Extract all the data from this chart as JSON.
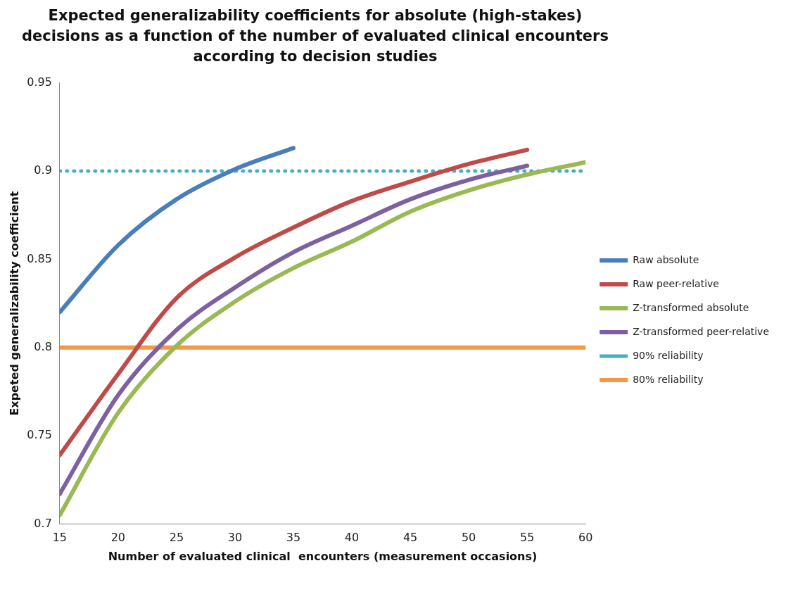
{
  "chart_data": {
    "type": "line",
    "title": "Expected generalizability coefficients for absolute (high-stakes) decisions as a function of the number of evaluated clinical encounters according to decision studies",
    "xlabel": "Number of evaluated clinical  encounters (measurement occasions)",
    "ylabel": "Expeted generalizability coefficient",
    "xlim": [
      15,
      60
    ],
    "xticks": [
      15,
      20,
      25,
      30,
      35,
      40,
      45,
      50,
      55,
      60
    ],
    "ylim": [
      0.7,
      0.95
    ],
    "yticks": [
      0.7,
      0.75,
      0.8,
      0.85,
      0.9,
      0.95
    ],
    "grid": false,
    "legend": "right",
    "marker": "none",
    "series": [
      {
        "name": "Raw absolute",
        "color": "#4a7ebb",
        "x": [
          15,
          20,
          25,
          30,
          35
        ],
        "values": [
          0.82,
          0.858,
          0.884,
          0.901,
          0.913
        ],
        "line_style": "solid"
      },
      {
        "name": "Raw peer-relative",
        "color": "#be4b48",
        "x": [
          15,
          20,
          25,
          30,
          35,
          40,
          45,
          50,
          55
        ],
        "values": [
          0.739,
          0.785,
          0.828,
          0.851,
          0.868,
          0.883,
          0.894,
          0.904,
          0.912
        ],
        "line_style": "solid"
      },
      {
        "name": "Z-transformed absolute",
        "color": "#98b954",
        "x": [
          15,
          20,
          25,
          30,
          35,
          40,
          45,
          50,
          55,
          60
        ],
        "values": [
          0.705,
          0.763,
          0.801,
          0.826,
          0.845,
          0.86,
          0.877,
          0.889,
          0.898,
          0.905
        ],
        "line_style": "solid"
      },
      {
        "name": "Z-transformed peer-relative",
        "color": "#7d60a0",
        "x": [
          15,
          20,
          25,
          30,
          35,
          40,
          45,
          50,
          55
        ],
        "values": [
          0.717,
          0.773,
          0.81,
          0.834,
          0.854,
          0.869,
          0.884,
          0.895,
          0.903
        ],
        "line_style": "solid"
      },
      {
        "name": "90% reliability",
        "color": "#4bacc6",
        "x": [
          15,
          60
        ],
        "values": [
          0.9,
          0.9
        ],
        "line_style": "dotted"
      },
      {
        "name": "80% reliability",
        "color": "#f79646",
        "x": [
          15,
          60
        ],
        "values": [
          0.8,
          0.8
        ],
        "line_style": "solid"
      }
    ]
  }
}
